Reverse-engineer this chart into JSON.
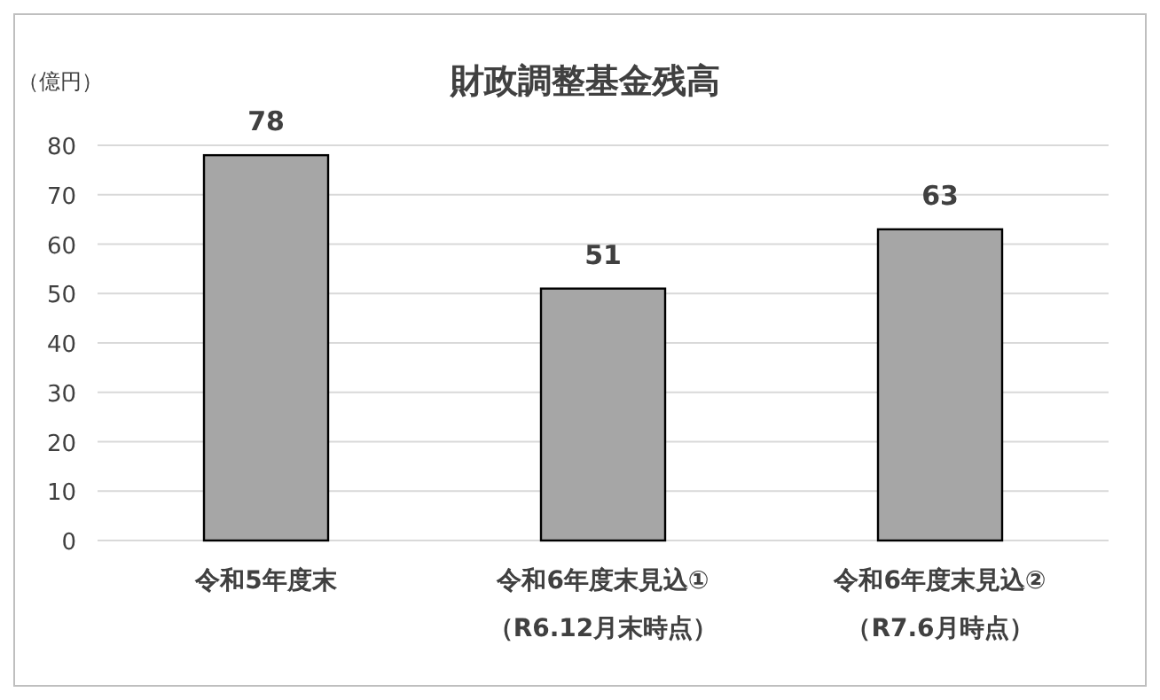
{
  "chart_data": {
    "type": "bar",
    "title": "財政調整基金残高",
    "ylabel": "（億円）",
    "categories": [
      "令和5年度末",
      "令和6年度末見込①\n（R6.12月末時点）",
      "令和6年度末見込②\n（R7.6月時点）"
    ],
    "values": [
      78,
      51,
      63
    ],
    "color": "#a6a6a6",
    "ylim": [
      0,
      80
    ],
    "yticks": [
      0,
      10,
      20,
      30,
      40,
      50,
      60,
      70,
      80
    ],
    "grid": "y",
    "data_labels": true
  }
}
